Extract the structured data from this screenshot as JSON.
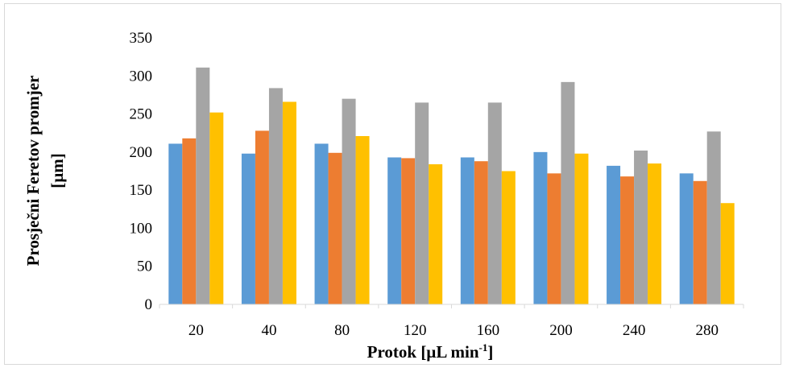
{
  "chart_data": {
    "type": "bar",
    "title": "",
    "xlabel": "Protok [µL min",
    "xlabel_sup": "-1",
    "xlabel_end": "]",
    "ylabel_line1": "Prosječni Feretov promjer",
    "ylabel_line2": "[µm]",
    "categories": [
      "20",
      "40",
      "80",
      "120",
      "160",
      "200",
      "240",
      "280"
    ],
    "ylim": [
      0,
      350
    ],
    "yticks": [
      0,
      50,
      100,
      150,
      200,
      250,
      300,
      350
    ],
    "grid": false,
    "legend": "none",
    "series": [
      {
        "color": "#5b9bd5",
        "values": [
          211,
          198,
          211,
          193,
          193,
          200,
          182,
          172
        ]
      },
      {
        "color": "#ed7d31",
        "values": [
          218,
          228,
          199,
          192,
          188,
          172,
          168,
          162
        ]
      },
      {
        "color": "#a5a5a5",
        "values": [
          311,
          284,
          270,
          265,
          265,
          292,
          202,
          227
        ]
      },
      {
        "color": "#ffc000",
        "values": [
          252,
          266,
          221,
          184,
          175,
          198,
          185,
          133
        ]
      }
    ]
  }
}
